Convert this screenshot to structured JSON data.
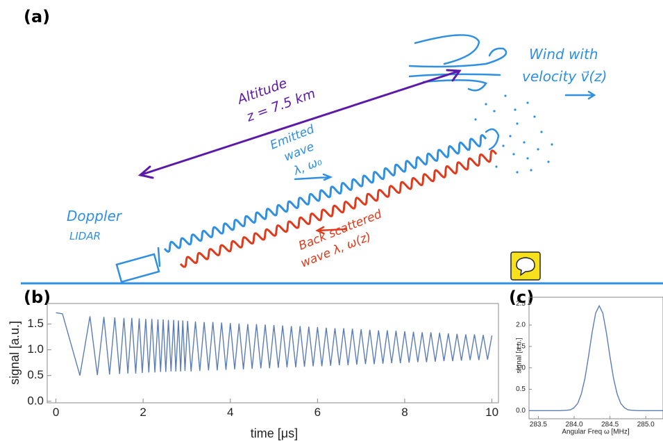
{
  "panel_labels": {
    "a": "(a)",
    "b": "(b)",
    "c": "(c)"
  },
  "sketch": {
    "altitude": "Altitude",
    "altitude_value": "z = 7.5 km",
    "wind_line1": "Wind with",
    "wind_line2": "velocity v⃗(z)",
    "emitted_line1": "Emitted",
    "emitted_line2": "wave",
    "emitted_line3": "λ, ω₀",
    "lidar_line1": "Doppler",
    "lidar_line2": "LIDAR",
    "back_line1": "Back scattered",
    "back_line2": "wave λ, ω(z)"
  },
  "chart_data": [
    {
      "type": "line",
      "x_label": "time [μs]",
      "y_label": "signal [a.u.]",
      "color": "#5b7db5",
      "xlim": [
        -0.2,
        10.15
      ],
      "ylim": [
        -0.03,
        1.9
      ],
      "xticks": [
        0,
        2,
        4,
        6,
        8,
        10
      ],
      "yticks": [
        {
          "value": 0,
          "label": "0.0"
        },
        0.5,
        {
          "value": 1,
          "label": "1.0"
        },
        1.5
      ],
      "x": [
        0,
        0.15,
        0.55,
        0.78,
        0.95,
        1.1,
        1.23,
        1.35,
        1.46,
        1.56,
        1.65,
        1.74,
        1.83,
        1.91,
        1.98,
        2.06,
        2.13,
        2.2,
        2.27,
        2.34,
        2.4,
        2.46,
        2.52,
        2.58,
        2.64,
        2.7,
        2.75,
        2.81,
        2.86,
        2.91,
        2.96,
        3.02,
        3.1,
        3.2,
        3.3,
        3.4,
        3.5,
        3.6,
        3.7,
        3.8,
        3.9,
        4.0,
        4.1,
        4.2,
        4.3,
        4.4,
        4.5,
        4.6,
        4.7,
        4.8,
        4.9,
        5.0,
        5.1,
        5.2,
        5.3,
        5.4,
        5.5,
        5.6,
        5.7,
        5.8,
        5.9,
        6.0,
        6.1,
        6.2,
        6.3,
        6.4,
        6.5,
        6.6,
        6.7,
        6.8,
        6.9,
        7.0,
        7.1,
        7.2,
        7.3,
        7.4,
        7.5,
        7.6,
        7.7,
        7.8,
        7.9,
        8.0,
        8.1,
        8.2,
        8.3,
        8.4,
        8.5,
        8.6,
        8.7,
        8.8,
        8.9,
        9.0,
        9.1,
        9.2,
        9.3,
        9.4,
        9.5,
        9.6,
        9.7,
        9.8,
        9.9,
        10.0
      ],
      "values": [
        1.72,
        1.7,
        0.5,
        1.65,
        0.51,
        1.64,
        0.52,
        1.63,
        0.53,
        1.62,
        0.54,
        1.62,
        0.54,
        1.61,
        0.55,
        1.6,
        0.56,
        1.6,
        0.56,
        1.59,
        0.57,
        1.59,
        0.57,
        1.58,
        0.58,
        1.58,
        0.58,
        1.57,
        0.58,
        1.57,
        0.59,
        1.56,
        0.58,
        1.55,
        0.59,
        1.54,
        0.6,
        1.54,
        0.6,
        1.53,
        0.61,
        1.52,
        0.62,
        1.51,
        0.62,
        1.5,
        0.63,
        1.5,
        0.64,
        1.49,
        0.64,
        1.48,
        0.65,
        1.47,
        0.66,
        1.46,
        0.66,
        1.46,
        0.67,
        1.45,
        0.68,
        1.44,
        0.68,
        1.43,
        0.69,
        1.42,
        0.7,
        1.42,
        0.7,
        1.41,
        0.71,
        1.4,
        0.72,
        1.39,
        0.72,
        1.38,
        0.73,
        1.38,
        0.74,
        1.37,
        0.74,
        1.36,
        0.75,
        1.35,
        0.76,
        1.34,
        0.76,
        1.34,
        0.77,
        1.33,
        0.78,
        1.32,
        0.78,
        1.31,
        0.79,
        1.3,
        0.8,
        1.3,
        0.8,
        1.29,
        0.81,
        1.28
      ]
    },
    {
      "type": "line",
      "x_label": "Angular Freq ω [MHz]",
      "y_label": "signal [a.u.]",
      "color": "#5b7db5",
      "xlim": [
        283.37,
        285.24
      ],
      "ylim": [
        -0.19,
        2.65
      ],
      "xticks": [
        283.5,
        {
          "value": 284,
          "label": "284.0"
        },
        284.5,
        {
          "value": 285,
          "label": "285.0"
        }
      ],
      "yticks": [
        {
          "value": 0,
          "label": "0.0"
        },
        0.5,
        {
          "value": 1,
          "label": "1.0"
        },
        1.5,
        {
          "value": 2,
          "label": "2.0"
        },
        2.5
      ],
      "x": [
        283.37,
        283.8,
        283.9,
        283.95,
        284.0,
        284.05,
        284.1,
        284.15,
        284.2,
        284.25,
        284.3,
        284.35,
        284.4,
        284.45,
        284.5,
        284.55,
        284.6,
        284.65,
        284.7,
        284.75,
        284.8,
        284.9,
        285.24
      ],
      "values": [
        0,
        0,
        0.01,
        0.02,
        0.07,
        0.17,
        0.39,
        0.75,
        1.26,
        1.82,
        2.28,
        2.45,
        2.28,
        1.82,
        1.26,
        0.75,
        0.39,
        0.17,
        0.07,
        0.02,
        0.01,
        0,
        0
      ]
    }
  ]
}
